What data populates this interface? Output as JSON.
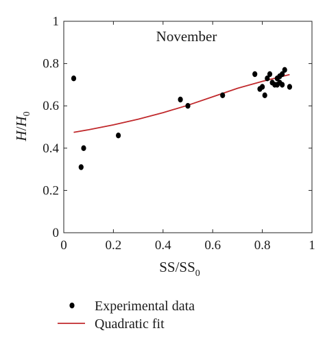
{
  "chart_data": {
    "type": "scatter",
    "title": "",
    "annotation": "November",
    "xlabel": {
      "main": "SS/SS",
      "sub": "0"
    },
    "ylabel": {
      "main": "H",
      "slash": "/",
      "main2": "H",
      "sub": "0"
    },
    "xlim": [
      0,
      1
    ],
    "ylim": [
      0,
      1
    ],
    "xticks": [
      {
        "v": 0,
        "label": "0"
      },
      {
        "v": 0.2,
        "label": "0.2"
      },
      {
        "v": 0.4,
        "label": "0.4"
      },
      {
        "v": 0.6,
        "label": "0.6"
      },
      {
        "v": 0.8,
        "label": "0.8"
      },
      {
        "v": 1,
        "label": "1"
      }
    ],
    "yticks": [
      {
        "v": 0,
        "label": "0"
      },
      {
        "v": 0.2,
        "label": "0.2"
      },
      {
        "v": 0.4,
        "label": "0.4"
      },
      {
        "v": 0.6,
        "label": "0.6"
      },
      {
        "v": 0.8,
        "label": "0.8"
      },
      {
        "v": 1,
        "label": "1"
      }
    ],
    "grid": false,
    "legend_position": "bottom",
    "series": [
      {
        "name": "Experimental data",
        "kind": "scatter",
        "color": "#000000",
        "points": [
          [
            0.04,
            0.73
          ],
          [
            0.07,
            0.31
          ],
          [
            0.08,
            0.4
          ],
          [
            0.22,
            0.46
          ],
          [
            0.47,
            0.63
          ],
          [
            0.5,
            0.6
          ],
          [
            0.64,
            0.65
          ],
          [
            0.77,
            0.75
          ],
          [
            0.79,
            0.68
          ],
          [
            0.8,
            0.69
          ],
          [
            0.81,
            0.65
          ],
          [
            0.82,
            0.73
          ],
          [
            0.83,
            0.75
          ],
          [
            0.84,
            0.71
          ],
          [
            0.85,
            0.7
          ],
          [
            0.86,
            0.7
          ],
          [
            0.86,
            0.73
          ],
          [
            0.87,
            0.71
          ],
          [
            0.87,
            0.74
          ],
          [
            0.88,
            0.7
          ],
          [
            0.88,
            0.75
          ],
          [
            0.89,
            0.77
          ],
          [
            0.91,
            0.69
          ]
        ]
      },
      {
        "name": "Quadratic fit",
        "kind": "line",
        "color": "#c0282b",
        "points": [
          [
            0.04,
            0.475
          ],
          [
            0.1,
            0.487
          ],
          [
            0.2,
            0.51
          ],
          [
            0.3,
            0.537
          ],
          [
            0.4,
            0.568
          ],
          [
            0.5,
            0.603
          ],
          [
            0.6,
            0.643
          ],
          [
            0.7,
            0.683
          ],
          [
            0.8,
            0.716
          ],
          [
            0.91,
            0.748
          ]
        ]
      }
    ]
  }
}
